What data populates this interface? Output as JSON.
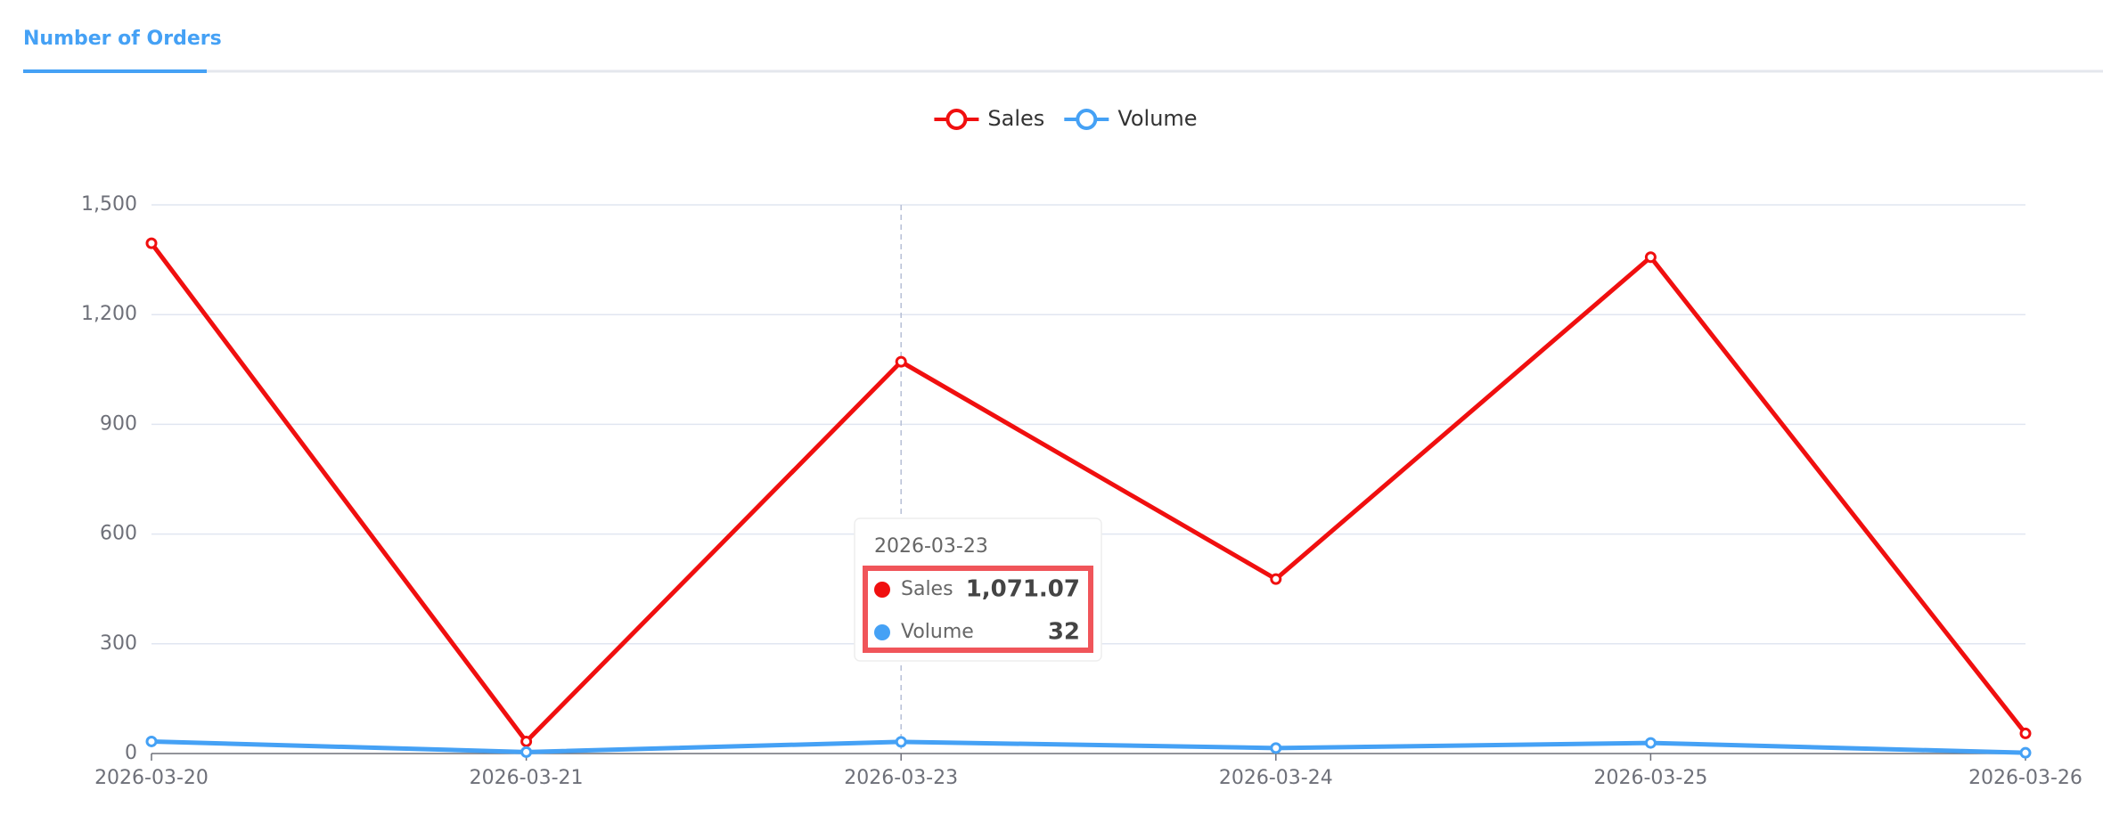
{
  "chart_data": {
    "type": "line",
    "title": "Number of Orders",
    "categories": [
      "2026-03-20",
      "2026-03-21",
      "2026-03-23",
      "2026-03-24",
      "2026-03-25",
      "2026-03-26"
    ],
    "series": [
      {
        "name": "Sales",
        "color": "#f00f0f",
        "values": [
          1395,
          33,
          1071.07,
          477,
          1357,
          55
        ],
        "value_labels": [
          null,
          null,
          "1,071.07",
          null,
          null,
          null
        ]
      },
      {
        "name": "Volume",
        "color": "#45a1f5",
        "values": [
          33,
          4,
          32,
          15,
          29,
          2
        ]
      }
    ],
    "ylim": [
      0,
      1500
    ],
    "yticks": [
      0,
      300,
      600,
      900,
      {
        "value": 1200,
        "label": "1,200"
      },
      {
        "value": 1500,
        "label": "1,500"
      }
    ],
    "grid": true
  }
}
